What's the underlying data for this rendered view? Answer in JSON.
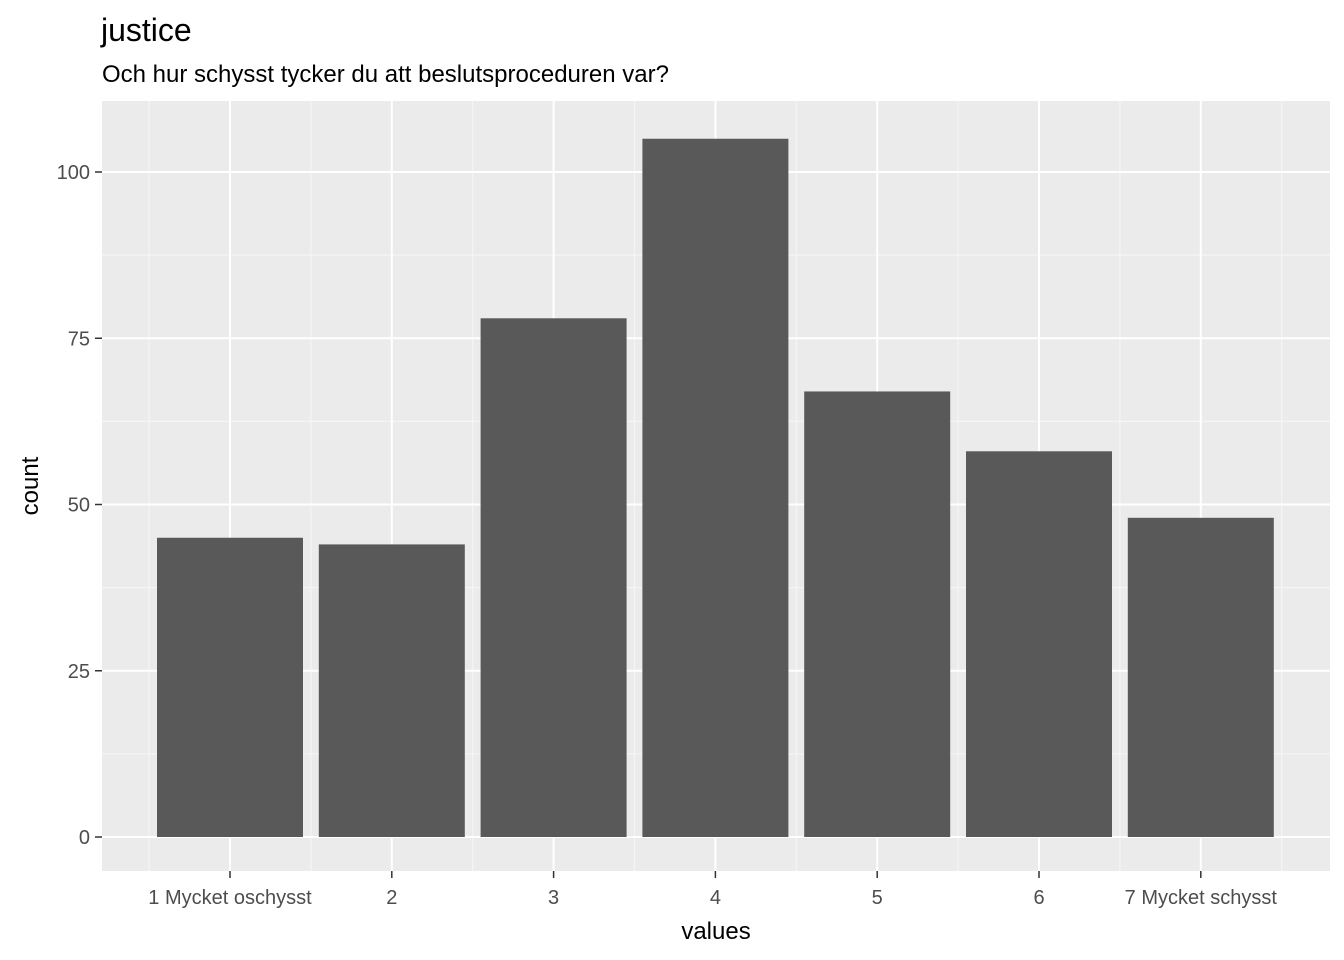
{
  "chart_data": {
    "type": "bar",
    "title": "justice",
    "subtitle": "Och hur schysst tycker du att beslutsproceduren var?",
    "xlabel": "values",
    "ylabel": "count",
    "categories": [
      "1 Mycket oschysst",
      "2",
      "3",
      "4",
      "5",
      "6",
      "7 Mycket schysst"
    ],
    "values": [
      45,
      44,
      78,
      105,
      67,
      58,
      48
    ],
    "ylim": [
      0,
      110
    ],
    "yticks": [
      0,
      25,
      50,
      75,
      100
    ],
    "grid": true,
    "legend": "none",
    "colors": {
      "bar": "#595959",
      "panel": "#ebebeb",
      "grid_major": "#ffffff",
      "grid_minor": "#f5f5f5",
      "tick": "#333333"
    }
  }
}
